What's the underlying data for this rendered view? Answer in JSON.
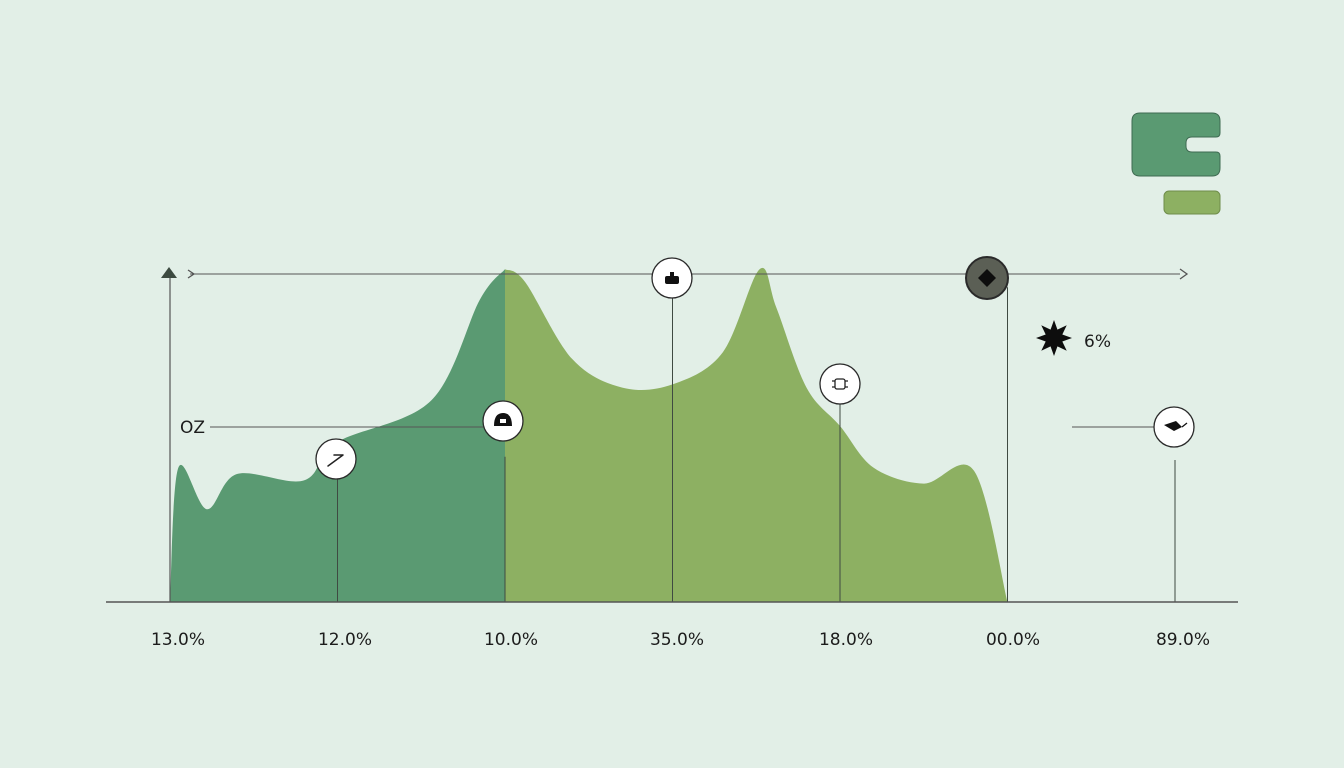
{
  "chart_data": {
    "type": "area",
    "x_tick_labels": [
      "13.0%",
      "12.0%",
      "10.0%",
      "35.0%",
      "18.0%",
      "00.0%",
      "89.0%"
    ],
    "y_tick_labels": [
      "OZ"
    ],
    "annotations": [
      {
        "label": "6%",
        "icon": "starburst-icon"
      }
    ],
    "series": [
      {
        "color": "#5a9a72",
        "points": [
          [
            0.0,
            0.0
          ],
          [
            0.05,
            0.84
          ],
          [
            0.22,
            0.58
          ],
          [
            0.4,
            0.8
          ],
          [
            0.8,
            0.76
          ],
          [
            1.0,
            1.0
          ],
          [
            1.56,
            1.26
          ],
          [
            1.85,
            1.89
          ],
          [
            2.0,
            2.08
          ]
        ]
      },
      {
        "color": "#8db062",
        "points": [
          [
            2.0,
            2.08
          ],
          [
            2.12,
            2.0
          ],
          [
            2.4,
            1.52
          ],
          [
            2.7,
            1.34
          ],
          [
            3.0,
            1.36
          ],
          [
            3.3,
            1.56
          ],
          [
            3.52,
            2.08
          ],
          [
            3.62,
            1.84
          ],
          [
            3.8,
            1.34
          ],
          [
            4.0,
            1.1
          ],
          [
            4.2,
            0.84
          ],
          [
            4.5,
            0.74
          ],
          [
            4.8,
            0.82
          ],
          [
            5.0,
            0.0
          ]
        ]
      }
    ],
    "markers": [
      {
        "x": 1.0,
        "y": 0.9,
        "icon": "arrow-icon",
        "dark": false
      },
      {
        "x": 2.0,
        "y": 1.02,
        "icon": "helmet-icon",
        "dark": false
      },
      {
        "x": 3.0,
        "y": 2.08,
        "icon": "bag-icon",
        "dark": false
      },
      {
        "x": 4.0,
        "y": 1.36,
        "icon": "bug-icon",
        "dark": false
      },
      {
        "x": 5.0,
        "y": 2.08,
        "icon": "diamond-icon",
        "dark": true
      },
      {
        "x": 6.0,
        "y": 1.0,
        "icon": "bird-icon",
        "dark": false
      }
    ],
    "legend_icons": [
      "legend-bracket-icon",
      "legend-bar-icon"
    ],
    "colors": {
      "dark_green": "#5a9a72",
      "light_green": "#8db062",
      "axis": "#555555",
      "background": "#e2efe7"
    },
    "x_axis_arrow": true,
    "y_axis_arrow": true
  }
}
